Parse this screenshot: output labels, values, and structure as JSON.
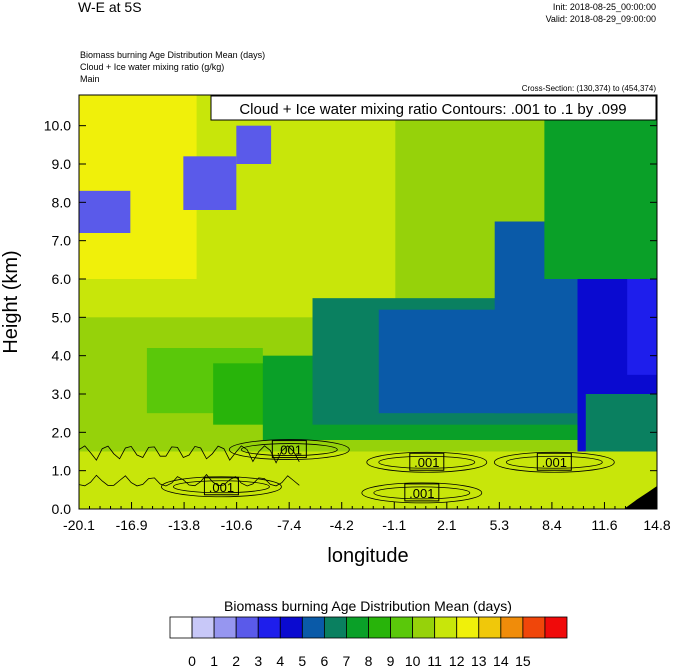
{
  "header": {
    "plot_title": "W-E at 5S",
    "init": "Init: 2018-08-25_00:00:00",
    "valid": "Valid: 2018-08-29_09:00:00",
    "field_1": "Biomass burning Age Distribution Mean    (days)",
    "field_2": "Cloud + Ice water mixing ratio    (g/kg)",
    "field_3": "Main",
    "cross_section": "Cross-Section: (130,374) to (454,374)"
  },
  "chart_data": {
    "type": "heatmap",
    "title": "W-E at 5S",
    "xlabel": "longitude",
    "ylabel": "Height (km)",
    "x_ticks": [
      "-20.1",
      "-16.9",
      "-13.8",
      "-10.6",
      "-7.4",
      "-4.2",
      "-1.1",
      "2.1",
      "5.3",
      "8.4",
      "11.6",
      "14.8"
    ],
    "y_ticks": [
      "0.0",
      "1.0",
      "2.0",
      "3.0",
      "4.0",
      "5.0",
      "6.0",
      "7.0",
      "8.0",
      "9.0",
      "10.0"
    ],
    "xlim": [
      -20.1,
      14.8
    ],
    "ylim": [
      0.0,
      10.8
    ],
    "contour_info": "Cloud + Ice water mixing ratio Contours: .001 to .1 by .099",
    "contour_labels": [
      ".001",
      ".001",
      ".001",
      ".001",
      ".001"
    ],
    "contour_label_positions": [
      {
        "lon": -7.4,
        "h": 1.55
      },
      {
        "lon": -11.5,
        "h": 0.58
      },
      {
        "lon": 0.9,
        "h": 1.22
      },
      {
        "lon": 0.6,
        "h": 0.42
      },
      {
        "lon": 8.6,
        "h": 1.22
      }
    ],
    "colorbar": {
      "title": "Biomass burning Age Distribution Mean  (days)",
      "labels": [
        "0",
        "1",
        "2",
        "3",
        "4",
        "5",
        "6",
        "7",
        "8",
        "9",
        "10",
        "11",
        "12",
        "13",
        "14",
        "15"
      ],
      "colors": [
        "#ffffff",
        "#c8c8f8",
        "#9696f0",
        "#5a5aea",
        "#1e1eec",
        "#0a0ad0",
        "#0a5aa8",
        "#0a8060",
        "#0aa028",
        "#28b40a",
        "#5ac80a",
        "#96d20a",
        "#c8e60a",
        "#f0f00a",
        "#f0c80a",
        "#f08c0a",
        "#f0460a",
        "#f00a0a"
      ]
    },
    "fields": {
      "age_days": [
        {
          "lon_from": -20.1,
          "lon_to": 14.8,
          "h_from": 0.0,
          "h_to": 10.8,
          "value": 10
        },
        {
          "lon_from": -20.1,
          "lon_to": 14.8,
          "h_from": 0.0,
          "h_to": 1.5,
          "value": 11
        },
        {
          "lon_from": -20.1,
          "lon_to": -1.0,
          "h_from": 5.0,
          "h_to": 10.8,
          "value": 11
        },
        {
          "lon_from": -20.1,
          "lon_to": -13.0,
          "h_from": 6.0,
          "h_to": 10.8,
          "value": 12
        },
        {
          "lon_from": -20.1,
          "lon_to": -17.0,
          "h_from": 7.2,
          "h_to": 8.3,
          "value": 2
        },
        {
          "lon_from": -13.8,
          "lon_to": -10.6,
          "h_from": 7.8,
          "h_to": 9.2,
          "value": 2
        },
        {
          "lon_from": -10.6,
          "lon_to": -8.5,
          "h_from": 9.0,
          "h_to": 10.0,
          "value": 2
        },
        {
          "lon_from": -16.0,
          "lon_to": -9.0,
          "h_from": 2.5,
          "h_to": 4.2,
          "value": 9
        },
        {
          "lon_from": -12.0,
          "lon_to": -1.0,
          "h_from": 2.2,
          "h_to": 3.8,
          "value": 8
        },
        {
          "lon_from": -9.0,
          "lon_to": 10.0,
          "h_from": 1.8,
          "h_to": 4.0,
          "value": 7
        },
        {
          "lon_from": -6.0,
          "lon_to": 14.8,
          "h_from": 2.2,
          "h_to": 5.5,
          "value": 6
        },
        {
          "lon_from": -2.0,
          "lon_to": 14.8,
          "h_from": 2.5,
          "h_to": 5.2,
          "value": 5
        },
        {
          "lon_from": 5.0,
          "lon_to": 14.8,
          "h_from": 2.5,
          "h_to": 7.5,
          "value": 5
        },
        {
          "lon_from": 10.0,
          "lon_to": 14.8,
          "h_from": 1.5,
          "h_to": 8.5,
          "value": 4
        },
        {
          "lon_from": 13.0,
          "lon_to": 14.8,
          "h_from": 3.5,
          "h_to": 8.0,
          "value": 3
        },
        {
          "lon_from": 8.0,
          "lon_to": 14.8,
          "h_from": 6.0,
          "h_to": 10.8,
          "value": 7
        },
        {
          "lon_from": 10.5,
          "lon_to": 14.8,
          "h_from": 1.5,
          "h_to": 3.0,
          "value": 6
        }
      ],
      "terrain": [
        {
          "lon": 12.8,
          "h": 0.0
        },
        {
          "lon": 13.6,
          "h": 0.25
        },
        {
          "lon": 14.3,
          "h": 0.45
        },
        {
          "lon": 14.8,
          "h": 0.6
        }
      ]
    }
  },
  "colors": {
    "background": "#ffffff",
    "axis": "#000000",
    "contour": "#000000",
    "terrain": "#000000"
  }
}
